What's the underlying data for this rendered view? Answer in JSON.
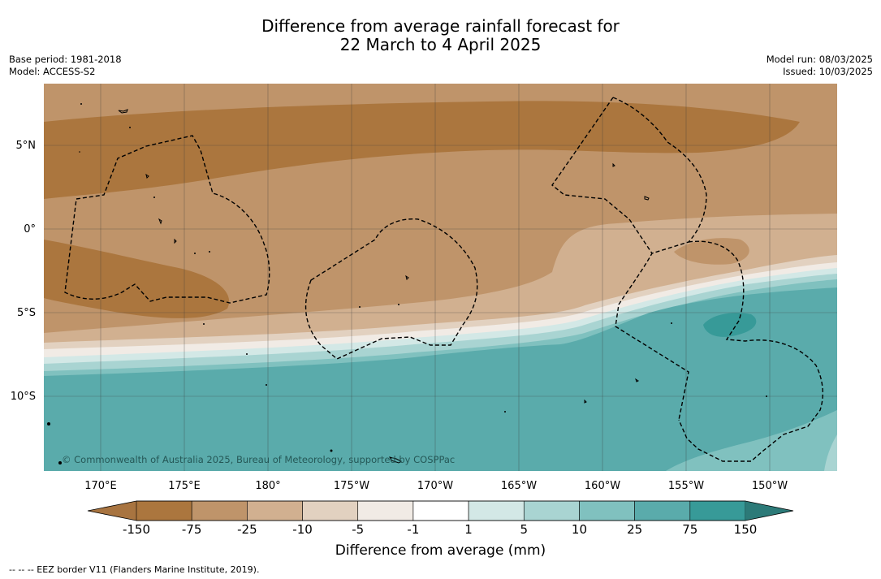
{
  "header": {
    "title_line1": "Difference from average rainfall forecast for",
    "title_line2": "22 March to 4 April 2025",
    "base_period": "Base period: 1981-2018",
    "model": "Model: ACCESS-S2",
    "model_run": "Model run: 08/03/2025",
    "issued": "Issued: 10/03/2025"
  },
  "map": {
    "copyright": "© Commonwealth of Australia 2025, Bureau of Meteorology, supported by COSPPac",
    "lat_labels": [
      "5°N",
      "0°",
      "5°S",
      "10°S"
    ],
    "lon_labels": [
      "170°E",
      "175°E",
      "180°",
      "175°W",
      "170°W",
      "165°W",
      "160°W",
      "155°W",
      "150°W"
    ]
  },
  "colorbar": {
    "title": "Difference from average (mm)",
    "tick_labels": [
      "-150",
      "-75",
      "-25",
      "-10",
      "-5",
      "-1",
      "1",
      "5",
      "10",
      "25",
      "75",
      "150"
    ],
    "colors": [
      "#a87440",
      "#ab763e",
      "#bf946a",
      "#d1b090",
      "#e2d1c0",
      "#f1ebe5",
      "#ffffff",
      "#d3e8e6",
      "#a9d4d2",
      "#80c1bf",
      "#5aabab",
      "#379a98",
      "#2c7a78"
    ]
  },
  "footnote": "--  --  -- EEZ border V11 (Flanders Marine Institute, 2019)."
}
